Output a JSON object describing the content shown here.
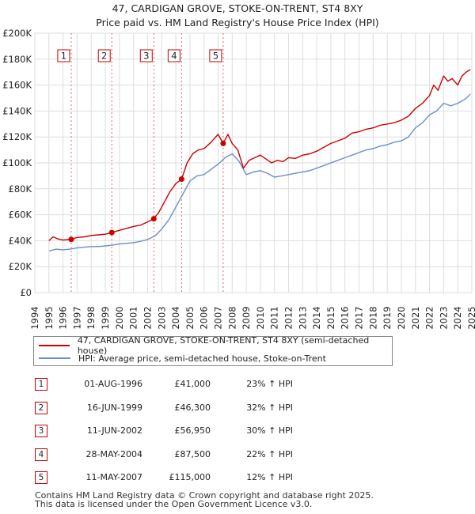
{
  "chart_data": {
    "type": "line",
    "title": "47, CARDIGAN GROVE, STOKE-ON-TRENT, ST4 8XY",
    "subtitle": "Price paid vs. HM Land Registry's House Price Index (HPI)",
    "xlabel": "",
    "ylabel": "",
    "xlim": [
      1994,
      2025
    ],
    "ylim": [
      0,
      200000
    ],
    "x_ticks": [
      1994,
      1995,
      1996,
      1997,
      1998,
      1999,
      2000,
      2001,
      2002,
      2003,
      2004,
      2005,
      2006,
      2007,
      2008,
      2009,
      2010,
      2011,
      2012,
      2013,
      2014,
      2015,
      2016,
      2017,
      2018,
      2019,
      2020,
      2021,
      2022,
      2023,
      2024,
      2025
    ],
    "y_ticks": [
      {
        "value": 0,
        "label": "£0"
      },
      {
        "value": 20000,
        "label": "£20K"
      },
      {
        "value": 40000,
        "label": "£40K"
      },
      {
        "value": 60000,
        "label": "£60K"
      },
      {
        "value": 80000,
        "label": "£80K"
      },
      {
        "value": 100000,
        "label": "£100K"
      },
      {
        "value": 120000,
        "label": "£120K"
      },
      {
        "value": 140000,
        "label": "£140K"
      },
      {
        "value": 160000,
        "label": "£160K"
      },
      {
        "value": 180000,
        "label": "£180K"
      },
      {
        "value": 200000,
        "label": "£200K"
      }
    ],
    "series": [
      {
        "name": "47, CARDIGAN GROVE, STOKE-ON-TRENT, ST4 8XY (semi-detached house)",
        "color": "#cc0000",
        "x": [
          1995.0,
          1995.3,
          1995.6,
          1996.0,
          1996.4,
          1996.58,
          1997.0,
          1997.5,
          1998.0,
          1998.5,
          1999.0,
          1999.46,
          2000.0,
          2000.5,
          2001.0,
          2001.5,
          2002.0,
          2002.44,
          2002.8,
          2003.2,
          2003.6,
          2004.0,
          2004.41,
          2004.8,
          2005.2,
          2005.6,
          2006.0,
          2006.5,
          2007.0,
          2007.36,
          2007.7,
          2008.0,
          2008.4,
          2008.8,
          2009.2,
          2009.6,
          2010.0,
          2010.4,
          2010.8,
          2011.2,
          2011.6,
          2012.0,
          2012.5,
          2013.0,
          2013.5,
          2014.0,
          2014.5,
          2015.0,
          2015.5,
          2016.0,
          2016.5,
          2017.0,
          2017.5,
          2018.0,
          2018.5,
          2019.0,
          2019.5,
          2020.0,
          2020.5,
          2021.0,
          2021.5,
          2022.0,
          2022.3,
          2022.6,
          2023.0,
          2023.3,
          2023.6,
          2024.0,
          2024.3,
          2024.6,
          2024.9
        ],
        "values": [
          40000,
          43000,
          41500,
          40500,
          41000,
          41000,
          42500,
          43000,
          44000,
          44500,
          45000,
          46300,
          48000,
          49500,
          51000,
          52000,
          54500,
          56950,
          62000,
          70000,
          78000,
          84000,
          87500,
          100000,
          107000,
          110000,
          111000,
          116000,
          122000,
          115000,
          122000,
          115000,
          110000,
          96000,
          102000,
          104000,
          106000,
          103000,
          100000,
          102000,
          101000,
          104000,
          103500,
          106000,
          107000,
          109000,
          112000,
          115000,
          117000,
          119000,
          123000,
          124000,
          126000,
          127000,
          129000,
          130000,
          131000,
          133000,
          136000,
          142000,
          146000,
          152000,
          160000,
          156000,
          167000,
          163000,
          165000,
          160000,
          167000,
          170000,
          172000
        ]
      },
      {
        "name": "HPI: Average price, semi-detached house, Stoke-on-Trent",
        "color": "#6a8fc9",
        "x": [
          1995.0,
          1995.5,
          1996.0,
          1996.5,
          1997.0,
          1997.5,
          1998.0,
          1998.5,
          1999.0,
          1999.5,
          2000.0,
          2000.5,
          2001.0,
          2001.5,
          2002.0,
          2002.5,
          2003.0,
          2003.5,
          2004.0,
          2004.5,
          2005.0,
          2005.5,
          2006.0,
          2006.5,
          2007.0,
          2007.5,
          2008.0,
          2008.5,
          2009.0,
          2009.5,
          2010.0,
          2010.5,
          2011.0,
          2011.5,
          2012.0,
          2012.5,
          2013.0,
          2013.5,
          2014.0,
          2014.5,
          2015.0,
          2015.5,
          2016.0,
          2016.5,
          2017.0,
          2017.5,
          2018.0,
          2018.5,
          2019.0,
          2019.5,
          2020.0,
          2020.5,
          2021.0,
          2021.5,
          2022.0,
          2022.5,
          2023.0,
          2023.5,
          2024.0,
          2024.5,
          2024.9
        ],
        "values": [
          32000,
          33500,
          33000,
          33500,
          34500,
          35000,
          35500,
          35500,
          36000,
          36500,
          37500,
          38000,
          38500,
          39500,
          41000,
          43500,
          49000,
          56000,
          66000,
          76000,
          86000,
          90000,
          91000,
          95000,
          99000,
          104000,
          107000,
          101000,
          91000,
          93000,
          94000,
          92000,
          89000,
          90000,
          91000,
          92000,
          93000,
          94000,
          96000,
          98000,
          100000,
          102000,
          104000,
          106000,
          108000,
          110000,
          111000,
          113000,
          114000,
          116000,
          117000,
          120000,
          127000,
          131000,
          137000,
          140000,
          146000,
          144000,
          146000,
          149000,
          153000
        ]
      }
    ],
    "sales": [
      {
        "num": "1",
        "x": 1996.58,
        "value": 41000
      },
      {
        "num": "2",
        "x": 1999.46,
        "value": 46300
      },
      {
        "num": "3",
        "x": 2002.44,
        "value": 56950
      },
      {
        "num": "4",
        "x": 2004.41,
        "value": 87500
      },
      {
        "num": "5",
        "x": 2007.36,
        "value": 115000
      }
    ]
  },
  "legend": {
    "property_label": "47, CARDIGAN GROVE, STOKE-ON-TRENT, ST4 8XY (semi-detached house)",
    "hpi_label": "HPI: Average price, semi-detached house, Stoke-on-Trent"
  },
  "sales_table": [
    {
      "num": "1",
      "date": "01-AUG-1996",
      "price": "£41,000",
      "hpi": "23% ↑ HPI"
    },
    {
      "num": "2",
      "date": "16-JUN-1999",
      "price": "£46,300",
      "hpi": "32% ↑ HPI"
    },
    {
      "num": "3",
      "date": "11-JUN-2002",
      "price": "£56,950",
      "hpi": "30% ↑ HPI"
    },
    {
      "num": "4",
      "date": "28-MAY-2004",
      "price": "£87,500",
      "hpi": "22% ↑ HPI"
    },
    {
      "num": "5",
      "date": "11-MAY-2007",
      "price": "£115,000",
      "hpi": "12% ↑ HPI"
    }
  ],
  "footer": {
    "line1": "Contains HM Land Registry data © Crown copyright and database right 2025.",
    "line2": "This data is licensed under the Open Government Licence v3.0."
  }
}
